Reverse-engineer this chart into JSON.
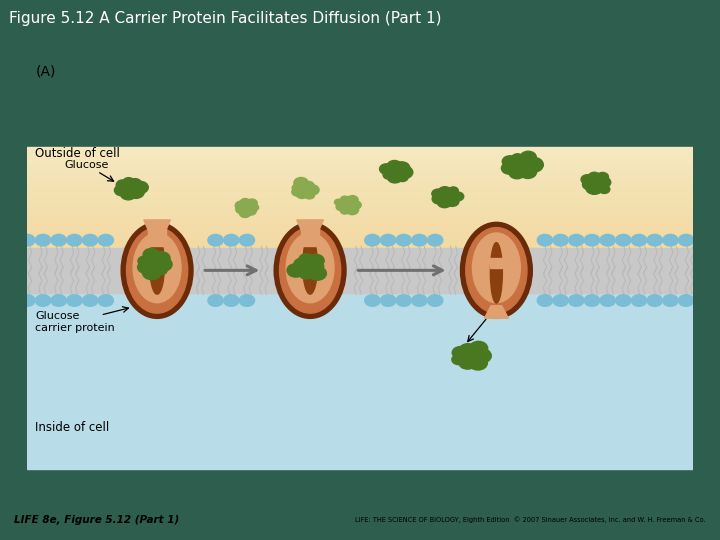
{
  "title": "Figure 5.12 A Carrier Protein Facilitates Diffusion (Part 1)",
  "title_bg": "#8B1A1A",
  "title_color": "#FFFFFF",
  "title_fontsize": 11,
  "fig_bg": "#2E5E4E",
  "panel_bg": "#FFFFFF",
  "outside_top_color": "#E8C87A",
  "outside_bot_color": "#F0D090",
  "inside_cell_color": "#B8DCE8",
  "lipid_head_color": "#7BBDD4",
  "tail_color": "#C8C8C8",
  "protein_outer_dark": "#6B2A08",
  "protein_mid": "#C87040",
  "protein_light": "#E0A070",
  "protein_channel": "#8B4010",
  "glucose_dark": "#4A7820",
  "glucose_pale": "#8AAA50",
  "arrow_gray": "#707070",
  "text_color": "#000000",
  "footer_left": "LIFE 8e, Figure 5.12 (Part 1)",
  "footer_right": "LIFE: THE SCIENCE OF BIOLOGY, Eighth Edition  © 2007 Sinauer Associates, Inc. and W. H. Freeman & Co.",
  "label_A": "(A)",
  "label_outside": "Outside of cell",
  "label_inside": "Inside of cell",
  "label_glucose": "Glucose",
  "label_carrier": "Glucose\ncarrier protein"
}
